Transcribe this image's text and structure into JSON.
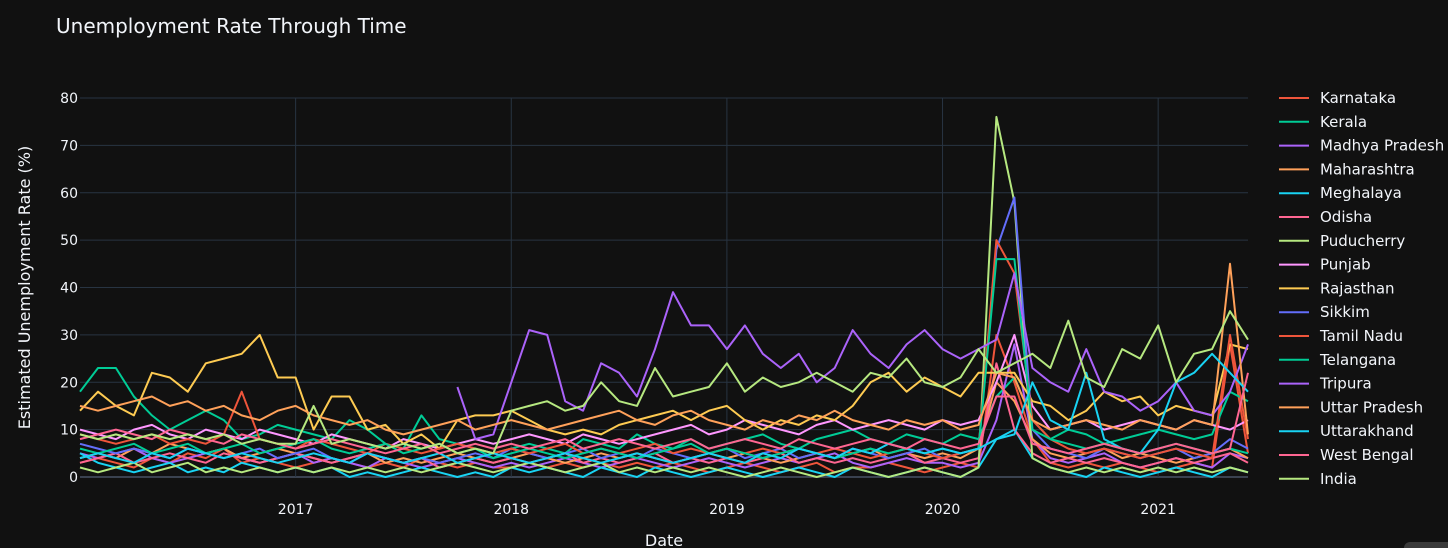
{
  "chart_data": {
    "type": "line",
    "title": "Unemployment Rate Through Time",
    "xlabel": "Date",
    "ylabel": "Estimated Unemployment Rate (%)",
    "x_range": [
      "2016-01",
      "2021-06"
    ],
    "xticks": [
      "2017",
      "2018",
      "2019",
      "2020",
      "2021"
    ],
    "ylim": [
      0,
      80
    ],
    "yticks": [
      0,
      10,
      20,
      30,
      40,
      50,
      60,
      70,
      80
    ],
    "grid": true,
    "legend_position": "right",
    "x": [
      "2016-01",
      "2016-02",
      "2016-03",
      "2016-04",
      "2016-05",
      "2016-06",
      "2016-07",
      "2016-08",
      "2016-09",
      "2016-10",
      "2016-11",
      "2016-12",
      "2017-01",
      "2017-02",
      "2017-03",
      "2017-04",
      "2017-05",
      "2017-06",
      "2017-07",
      "2017-08",
      "2017-09",
      "2017-10",
      "2017-11",
      "2017-12",
      "2018-01",
      "2018-02",
      "2018-03",
      "2018-04",
      "2018-05",
      "2018-06",
      "2018-07",
      "2018-08",
      "2018-09",
      "2018-10",
      "2018-11",
      "2018-12",
      "2019-01",
      "2019-02",
      "2019-03",
      "2019-04",
      "2019-05",
      "2019-06",
      "2019-07",
      "2019-08",
      "2019-09",
      "2019-10",
      "2019-11",
      "2019-12",
      "2020-01",
      "2020-02",
      "2020-03",
      "2020-04",
      "2020-05",
      "2020-06",
      "2020-07",
      "2020-08",
      "2020-09",
      "2020-10",
      "2020-11",
      "2020-12",
      "2021-01",
      "2021-02",
      "2021-03",
      "2021-04",
      "2021-05",
      "2021-06"
    ],
    "series": [
      {
        "name": "Karnataka",
        "color": "#EF553B",
        "values": [
          3,
          4,
          3,
          2,
          4,
          3,
          5,
          4,
          6,
          3,
          4,
          3,
          2,
          3,
          4,
          3,
          2,
          3,
          2,
          4,
          3,
          2,
          3,
          2,
          2,
          3,
          2,
          3,
          2,
          3,
          2,
          3,
          2,
          3,
          2,
          1,
          2,
          3,
          2,
          1,
          2,
          3,
          1,
          2,
          2,
          3,
          2,
          1,
          2,
          3,
          2,
          30,
          20,
          8,
          3,
          2,
          3,
          2,
          3,
          2,
          1,
          2,
          3,
          2,
          28,
          5
        ]
      },
      {
        "name": "Kerala",
        "color": "#00CC96",
        "values": [
          18,
          23,
          23,
          17,
          13,
          10,
          12,
          14,
          12,
          8,
          9,
          11,
          10,
          9,
          8,
          12,
          10,
          7,
          6,
          13,
          8,
          7,
          6,
          5,
          6,
          7,
          6,
          5,
          8,
          7,
          6,
          9,
          7,
          6,
          8,
          6,
          7,
          8,
          9,
          7,
          6,
          8,
          9,
          10,
          8,
          7,
          9,
          8,
          7,
          9,
          8,
          17,
          21,
          12,
          8,
          10,
          9,
          7,
          8,
          9,
          10,
          9,
          8,
          9,
          18,
          16
        ]
      },
      {
        "name": "Madhya Pradesh",
        "color": "#AB63FA",
        "values": [
          5,
          4,
          5,
          6,
          4,
          3,
          4,
          5,
          6,
          4,
          3,
          4,
          5,
          3,
          4,
          3,
          2,
          4,
          3,
          2,
          3,
          4,
          3,
          2,
          3,
          2,
          3,
          4,
          3,
          2,
          3,
          4,
          3,
          2,
          3,
          4,
          3,
          2,
          3,
          4,
          3,
          4,
          5,
          3,
          2,
          3,
          4,
          3,
          3,
          2,
          3,
          12,
          28,
          8,
          4,
          3,
          4,
          5,
          3,
          2,
          3,
          4,
          3,
          2,
          5,
          4
        ]
      },
      {
        "name": "Maharashtra",
        "color": "#FFA15A",
        "values": [
          4,
          5,
          4,
          6,
          5,
          7,
          6,
          5,
          6,
          4,
          5,
          6,
          5,
          4,
          3,
          4,
          5,
          3,
          4,
          3,
          4,
          5,
          4,
          3,
          4,
          5,
          4,
          3,
          4,
          5,
          4,
          5,
          4,
          3,
          4,
          5,
          4,
          5,
          4,
          3,
          4,
          5,
          4,
          5,
          6,
          4,
          5,
          4,
          5,
          4,
          6,
          20,
          16,
          8,
          5,
          4,
          5,
          6,
          4,
          5,
          4,
          3,
          4,
          5,
          6,
          4
        ]
      },
      {
        "name": "Meghalaya",
        "color": "#19D3F3",
        "values": [
          5,
          3,
          2,
          1,
          2,
          3,
          1,
          2,
          1,
          3,
          2,
          1,
          2,
          1,
          2,
          0,
          1,
          0,
          1,
          2,
          1,
          0,
          1,
          0,
          2,
          1,
          2,
          1,
          0,
          2,
          1,
          0,
          2,
          1,
          0,
          1,
          2,
          1,
          0,
          1,
          2,
          1,
          0,
          2,
          1,
          0,
          1,
          2,
          1,
          0,
          2,
          8,
          10,
          4,
          2,
          1,
          0,
          2,
          1,
          0,
          1,
          2,
          1,
          0,
          2,
          1
        ]
      },
      {
        "name": "Odisha",
        "color": "#FF6692",
        "values": [
          3,
          4,
          5,
          3,
          4,
          5,
          4,
          3,
          5,
          4,
          3,
          4,
          5,
          4,
          3,
          4,
          5,
          4,
          3,
          4,
          2,
          3,
          4,
          3,
          4,
          3,
          4,
          5,
          3,
          4,
          3,
          4,
          5,
          3,
          4,
          3,
          4,
          3,
          4,
          5,
          3,
          4,
          3,
          4,
          3,
          4,
          5,
          3,
          4,
          3,
          4,
          24,
          10,
          5,
          3,
          4,
          3,
          4,
          3,
          2,
          3,
          4,
          3,
          4,
          5,
          3
        ]
      },
      {
        "name": "Puducherry",
        "color": "#B6E880",
        "values": [
          2,
          1,
          2,
          3,
          1,
          2,
          3,
          1,
          2,
          1,
          2,
          1,
          2,
          1,
          2,
          1,
          2,
          1,
          2,
          1,
          2,
          3,
          2,
          1,
          2,
          3,
          2,
          1,
          2,
          3,
          1,
          2,
          1,
          2,
          1,
          2,
          1,
          0,
          1,
          2,
          1,
          0,
          1,
          2,
          1,
          0,
          1,
          2,
          1,
          0,
          2,
          76,
          58,
          4,
          2,
          1,
          2,
          1,
          2,
          1,
          2,
          1,
          2,
          1,
          2,
          1
        ]
      },
      {
        "name": "Punjab",
        "color": "#FF97FF",
        "values": [
          10,
          9,
          8,
          10,
          11,
          9,
          8,
          10,
          9,
          8,
          10,
          9,
          8,
          7,
          9,
          8,
          7,
          6,
          8,
          7,
          6,
          7,
          8,
          7,
          8,
          9,
          8,
          7,
          9,
          8,
          7,
          8,
          9,
          10,
          11,
          9,
          10,
          12,
          11,
          10,
          9,
          11,
          12,
          10,
          11,
          12,
          11,
          10,
          12,
          11,
          12,
          20,
          30,
          15,
          10,
          11,
          12,
          10,
          11,
          12,
          11,
          10,
          12,
          11,
          10,
          12
        ]
      },
      {
        "name": "Rajasthan",
        "color": "#FECB52",
        "values": [
          14,
          18,
          15,
          13,
          22,
          21,
          18,
          24,
          25,
          26,
          30,
          21,
          21,
          10,
          17,
          17,
          10,
          11,
          7,
          9,
          6,
          12,
          13,
          13,
          14,
          12,
          10,
          9,
          10,
          9,
          11,
          12,
          13,
          14,
          12,
          14,
          15,
          12,
          10,
          12,
          11,
          13,
          12,
          15,
          20,
          22,
          18,
          21,
          19,
          17,
          22,
          22,
          22,
          16,
          15,
          12,
          14,
          18,
          16,
          17,
          13,
          15,
          14,
          13,
          28,
          27
        ]
      },
      {
        "name": "Sikkim",
        "color": "#636EFA",
        "values": [
          7,
          6,
          5,
          6,
          5,
          4,
          6,
          5,
          4,
          5,
          6,
          4,
          5,
          6,
          4,
          3,
          5,
          4,
          3,
          4,
          3,
          4,
          5,
          4,
          6,
          5,
          4,
          5,
          6,
          4,
          5,
          4,
          6,
          5,
          4,
          5,
          6,
          4,
          5,
          6,
          4,
          5,
          4,
          6,
          5,
          4,
          5,
          6,
          4,
          5,
          6,
          48,
          59,
          10,
          6,
          5,
          4,
          6,
          5,
          4,
          5,
          6,
          4,
          5,
          8,
          6
        ]
      },
      {
        "name": "Tamil Nadu",
        "color": "#EF553B",
        "values": [
          9,
          8,
          7,
          8,
          9,
          7,
          8,
          7,
          9,
          18,
          8,
          7,
          6,
          8,
          7,
          6,
          5,
          7,
          6,
          5,
          6,
          7,
          6,
          5,
          6,
          5,
          6,
          7,
          5,
          6,
          5,
          6,
          7,
          5,
          6,
          5,
          6,
          5,
          6,
          5,
          6,
          5,
          6,
          5,
          4,
          5,
          6,
          5,
          4,
          5,
          6,
          50,
          43,
          12,
          8,
          6,
          5,
          6,
          5,
          4,
          5,
          6,
          5,
          4,
          30,
          8
        ]
      },
      {
        "name": "Telangana",
        "color": "#00CC96",
        "values": [
          6,
          5,
          6,
          7,
          5,
          6,
          7,
          5,
          6,
          7,
          5,
          6,
          7,
          8,
          6,
          5,
          6,
          7,
          5,
          6,
          7,
          5,
          6,
          4,
          5,
          6,
          5,
          4,
          5,
          6,
          5,
          4,
          5,
          6,
          7,
          5,
          6,
          5,
          4,
          5,
          6,
          5,
          4,
          5,
          6,
          5,
          6,
          5,
          6,
          5,
          6,
          46,
          46,
          10,
          8,
          7,
          6,
          7,
          6,
          5,
          6,
          7,
          6,
          5,
          6,
          5
        ]
      },
      {
        "name": "Tripura",
        "color": "#AB63FA",
        "values": [
          null,
          null,
          null,
          null,
          null,
          null,
          null,
          null,
          null,
          null,
          null,
          null,
          null,
          null,
          null,
          null,
          null,
          null,
          null,
          null,
          null,
          19,
          8,
          9,
          20,
          31,
          30,
          16,
          14,
          24,
          22,
          17,
          27,
          39,
          32,
          32,
          27,
          32,
          26,
          23,
          26,
          20,
          23,
          31,
          26,
          23,
          28,
          31,
          27,
          25,
          27,
          29,
          43,
          23,
          20,
          18,
          27,
          18,
          17,
          14,
          16,
          20,
          14,
          13,
          18,
          28
        ]
      },
      {
        "name": "Uttar Pradesh",
        "color": "#FFA15A",
        "values": [
          15,
          14,
          15,
          16,
          17,
          15,
          16,
          14,
          15,
          13,
          12,
          14,
          15,
          13,
          12,
          11,
          12,
          10,
          9,
          10,
          11,
          12,
          10,
          11,
          12,
          11,
          10,
          11,
          12,
          13,
          14,
          12,
          11,
          13,
          14,
          12,
          11,
          10,
          12,
          11,
          13,
          12,
          14,
          12,
          11,
          10,
          12,
          11,
          12,
          10,
          11,
          22,
          21,
          12,
          10,
          11,
          12,
          11,
          10,
          12,
          11,
          10,
          12,
          11,
          45,
          9
        ]
      },
      {
        "name": "Uttarakhand",
        "color": "#19D3F3",
        "values": [
          4,
          5,
          4,
          3,
          5,
          4,
          6,
          5,
          4,
          5,
          4,
          3,
          4,
          5,
          4,
          3,
          5,
          4,
          3,
          4,
          5,
          3,
          4,
          5,
          4,
          3,
          4,
          5,
          4,
          3,
          4,
          5,
          4,
          3,
          4,
          5,
          4,
          3,
          5,
          4,
          6,
          5,
          4,
          6,
          5,
          7,
          6,
          5,
          6,
          5,
          6,
          8,
          9,
          20,
          12,
          10,
          22,
          8,
          6,
          5,
          10,
          20,
          22,
          26,
          22,
          18
        ]
      },
      {
        "name": "West Bengal",
        "color": "#FF6692",
        "values": [
          8,
          9,
          10,
          9,
          8,
          10,
          9,
          8,
          7,
          9,
          8,
          7,
          6,
          7,
          8,
          7,
          6,
          5,
          6,
          7,
          5,
          6,
          7,
          6,
          7,
          6,
          7,
          8,
          6,
          7,
          8,
          7,
          6,
          7,
          8,
          6,
          7,
          8,
          7,
          6,
          8,
          7,
          6,
          7,
          8,
          7,
          6,
          8,
          7,
          6,
          7,
          17,
          17,
          7,
          6,
          5,
          6,
          7,
          6,
          5,
          6,
          7,
          6,
          5,
          6,
          22
        ]
      },
      {
        "name": "India",
        "color": "#B6E880",
        "values": [
          9,
          8,
          9,
          8,
          9,
          8,
          9,
          8,
          9,
          7,
          8,
          7,
          7,
          15,
          7,
          8,
          7,
          6,
          7,
          6,
          7,
          5,
          6,
          5,
          14,
          15,
          16,
          14,
          15,
          20,
          16,
          15,
          23,
          17,
          18,
          19,
          24,
          18,
          21,
          19,
          20,
          22,
          20,
          18,
          22,
          21,
          25,
          20,
          19,
          21,
          27,
          22,
          24,
          26,
          23,
          33,
          21,
          19,
          27,
          25,
          32,
          20,
          26,
          27,
          35,
          29
        ]
      }
    ]
  }
}
